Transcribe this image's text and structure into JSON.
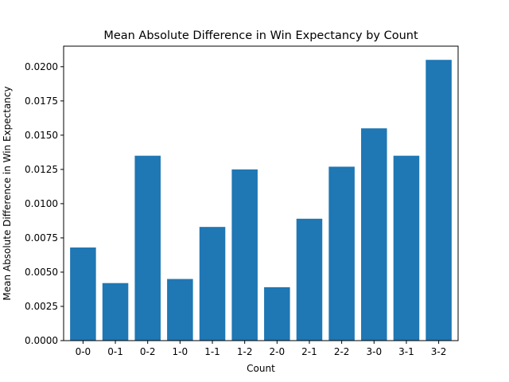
{
  "chart_data": {
    "type": "bar",
    "title": "Mean Absolute Difference in Win Expectancy by Count",
    "xlabel": "Count",
    "ylabel": "Mean Absolute Difference in Win Expectancy",
    "categories": [
      "0-0",
      "0-1",
      "0-2",
      "1-0",
      "1-1",
      "1-2",
      "2-0",
      "2-1",
      "2-2",
      "3-0",
      "3-1",
      "3-2"
    ],
    "values": [
      0.0068,
      0.0042,
      0.0135,
      0.0045,
      0.0083,
      0.0125,
      0.0039,
      0.0089,
      0.0127,
      0.0155,
      0.0135,
      0.0205
    ],
    "ylim": [
      0,
      0.0215
    ],
    "yticks": [
      "0.0000",
      "0.0025",
      "0.0050",
      "0.0075",
      "0.0100",
      "0.0125",
      "0.0150",
      "0.0175",
      "0.0200"
    ],
    "bar_color": "#1f77b4",
    "grid": false,
    "legend": "none"
  }
}
